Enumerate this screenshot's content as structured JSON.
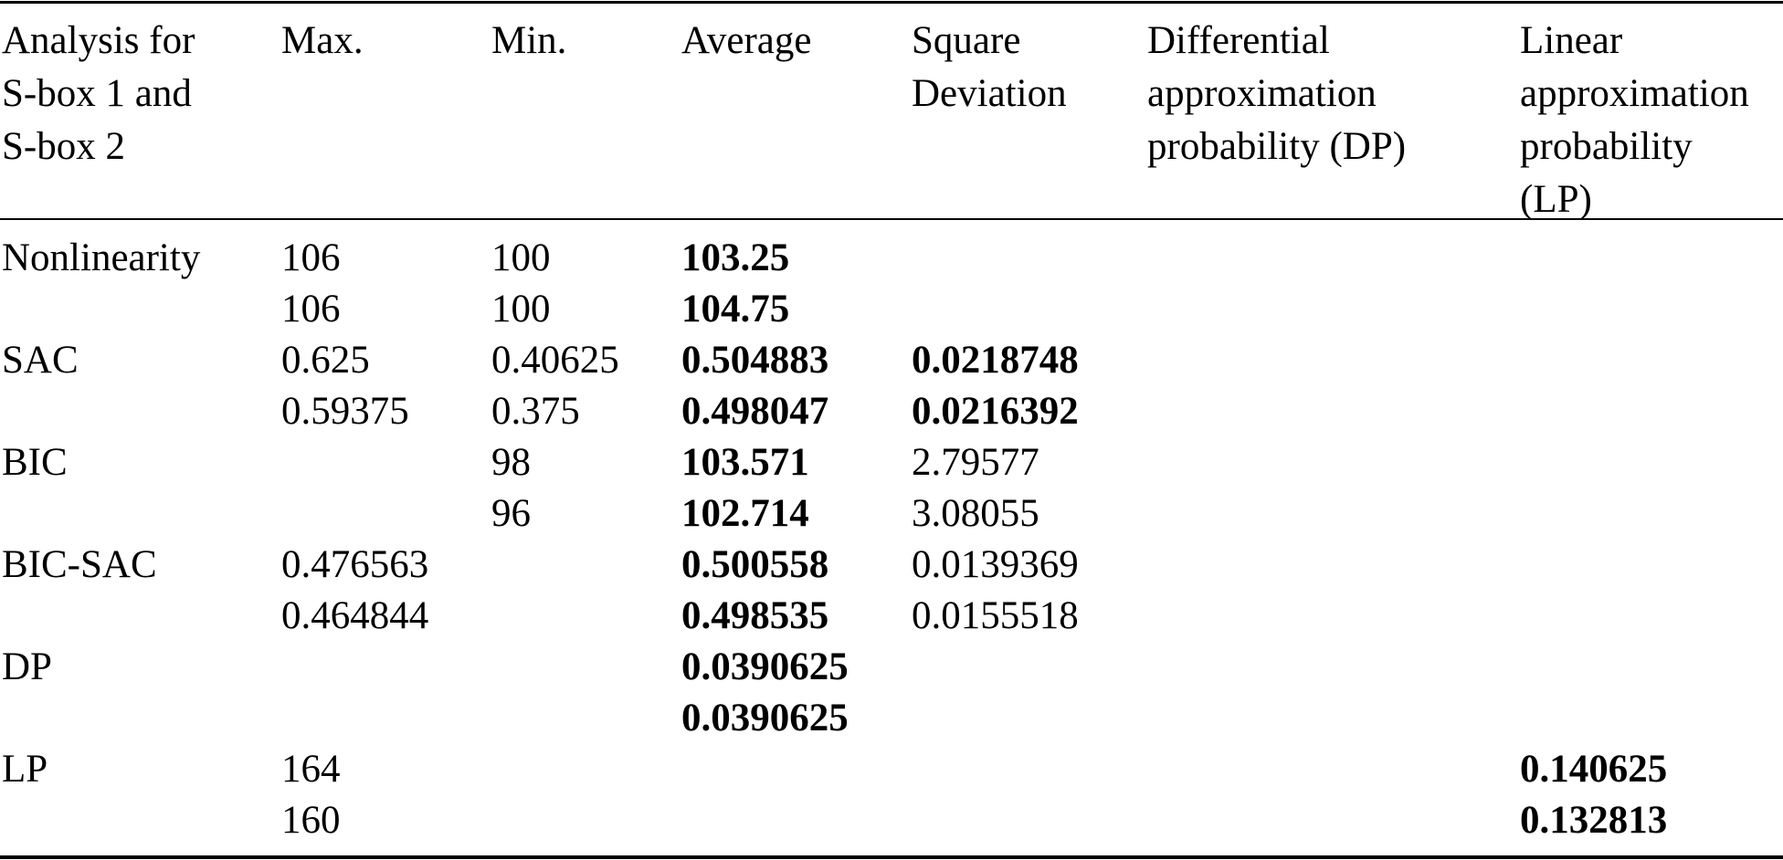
{
  "headers": {
    "analysis": [
      "Analysis for",
      "S-box 1 and",
      "S-box 2"
    ],
    "max": [
      "Max."
    ],
    "min": [
      "Min."
    ],
    "average": [
      "Average"
    ],
    "sqdev": [
      "Square",
      "Deviation"
    ],
    "dp": [
      "Differential",
      "approximation",
      "probability (DP)"
    ],
    "lp": [
      "Linear",
      "approximation",
      "probability",
      "(LP)"
    ]
  },
  "rows": [
    {
      "label": "Nonlinearity",
      "max": "106",
      "min": "100",
      "avg": "103.25",
      "sq": "",
      "dp": "",
      "lp": ""
    },
    {
      "label": "",
      "max": "106",
      "min": "100",
      "avg": "104.75",
      "sq": "",
      "dp": "",
      "lp": ""
    },
    {
      "label": "SAC",
      "max": "0.625",
      "min": "0.40625",
      "avg": "0.504883",
      "sq": "0.0218748",
      "dp": "",
      "lp": ""
    },
    {
      "label": "",
      "max": "0.59375",
      "min": "0.375",
      "avg": "0.498047",
      "sq": "0.0216392",
      "dp": "",
      "lp": ""
    },
    {
      "label": "BIC",
      "max": "",
      "min": "98",
      "avg": "103.571",
      "sq": "2.79577",
      "dp": "",
      "lp": ""
    },
    {
      "label": "",
      "max": "",
      "min": "96",
      "avg": "102.714",
      "sq": "3.08055",
      "dp": "",
      "lp": ""
    },
    {
      "label": "BIC-SAC",
      "max": "0.476563",
      "min": "",
      "avg": "0.500558",
      "sq": "0.0139369",
      "dp": "",
      "lp": ""
    },
    {
      "label": "",
      "max": "0.464844",
      "min": "",
      "avg": "0.498535",
      "sq": "0.0155518",
      "dp": "",
      "lp": ""
    },
    {
      "label": "DP",
      "max": "",
      "min": "",
      "avg": "0.0390625",
      "sq": "",
      "dp": "",
      "lp": ""
    },
    {
      "label": "",
      "max": "",
      "min": "",
      "avg": "0.0390625",
      "sq": "",
      "dp": "",
      "lp": ""
    },
    {
      "label": "LP",
      "max": "164",
      "min": "",
      "avg": "",
      "sq": "",
      "dp": "",
      "lp": "0.140625"
    },
    {
      "label": "",
      "max": "160",
      "min": "",
      "avg": "",
      "sq": "",
      "dp": "",
      "lp": "0.132813"
    }
  ]
}
